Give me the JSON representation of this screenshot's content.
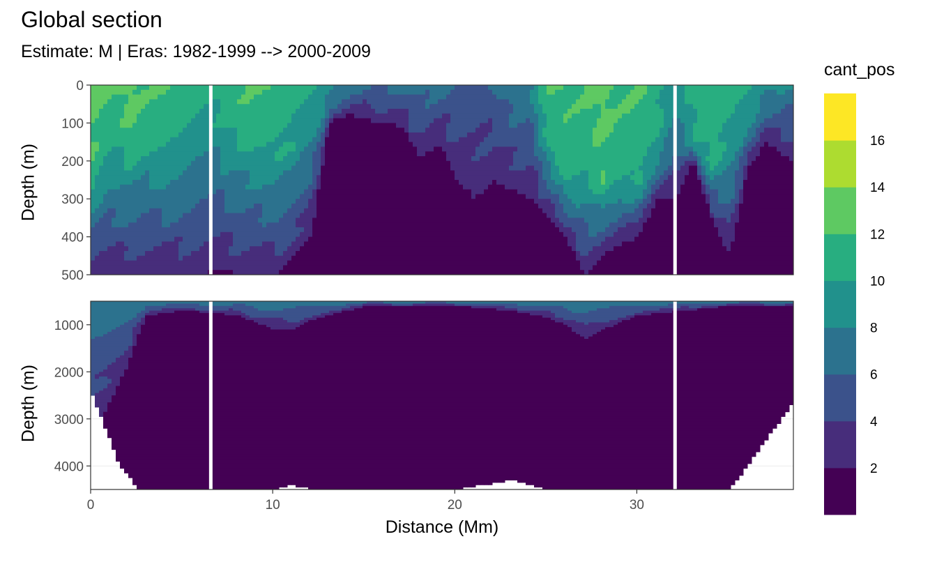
{
  "chart_data": {
    "type": "heatmap",
    "title": "Global section",
    "subtitle": "Estimate: M  | Eras: 1982-1999 --> 2000-2009",
    "xlabel": "Distance (Mm)",
    "ylabel": "Depth (m)",
    "legend_title": "cant_pos",
    "legend_placement": "right",
    "grid": true,
    "x_ticks": [
      0,
      10,
      20,
      30
    ],
    "xlim": [
      0,
      38.6
    ],
    "panels": [
      {
        "name": "upper",
        "ylim": [
          500,
          0
        ],
        "y_ticks": [
          0,
          100,
          200,
          300,
          400,
          500
        ]
      },
      {
        "name": "lower",
        "ylim": [
          4500,
          500
        ],
        "y_ticks": [
          1000,
          2000,
          3000,
          4000
        ]
      }
    ],
    "color_levels": [
      {
        "min": 0,
        "max": 2,
        "color": "#440154"
      },
      {
        "min": 2,
        "max": 4,
        "color": "#472d7b"
      },
      {
        "min": 4,
        "max": 6,
        "color": "#3b528b"
      },
      {
        "min": 6,
        "max": 8,
        "color": "#2c728e"
      },
      {
        "min": 8,
        "max": 10,
        "color": "#21918c"
      },
      {
        "min": 10,
        "max": 12,
        "color": "#28ae80"
      },
      {
        "min": 12,
        "max": 14,
        "color": "#5ec962"
      },
      {
        "min": 14,
        "max": 16,
        "color": "#addc30"
      },
      {
        "min": 16,
        "max": 18,
        "color": "#fde725"
      }
    ],
    "legend_ticks": [
      2,
      4,
      6,
      8,
      10,
      12,
      14,
      16
    ],
    "section_gaps_mm": [
      6.6,
      32.1
    ],
    "upper_profile": {
      "distance_mm": [
        0,
        1,
        2,
        3,
        4,
        5,
        6,
        7,
        8,
        9,
        10,
        11,
        12,
        13,
        14,
        15,
        16,
        17,
        18,
        19,
        20,
        21,
        22,
        23,
        24,
        25,
        26,
        27,
        28,
        29,
        30,
        31,
        32,
        33,
        34,
        35,
        36,
        37,
        38.4
      ],
      "min_depth_m": [
        500,
        500,
        500,
        500,
        500,
        500,
        500,
        480,
        500,
        500,
        500,
        450,
        400,
        100,
        80,
        90,
        100,
        110,
        200,
        150,
        250,
        300,
        250,
        280,
        300,
        350,
        400,
        500,
        450,
        420,
        400,
        300,
        300,
        200,
        350,
        450,
        220,
        150,
        200
      ],
      "green_depth_m": [
        230,
        140,
        150,
        140,
        150,
        110,
        90,
        120,
        130,
        140,
        160,
        170,
        120,
        50,
        20,
        0,
        0,
        0,
        30,
        0,
        0,
        0,
        20,
        50,
        60,
        150,
        250,
        220,
        260,
        240,
        250,
        180,
        100,
        160,
        200,
        150,
        100,
        50,
        30
      ],
      "surface_value": [
        13,
        12,
        13,
        12,
        12,
        12,
        11,
        11,
        12,
        12,
        12,
        11,
        10,
        9,
        8,
        8,
        8,
        8,
        8,
        8,
        7,
        7,
        7,
        8,
        8,
        12,
        12,
        12,
        13,
        12,
        12,
        11,
        9,
        11,
        12,
        11,
        10,
        9,
        8
      ]
    },
    "lower_profile": {
      "distance_mm": [
        0,
        0.5,
        1,
        1.5,
        2,
        2.5,
        3,
        5,
        8,
        10,
        11,
        12,
        15,
        18,
        20,
        23,
        25,
        26,
        27,
        28,
        30,
        35,
        38.4
      ],
      "min_depth_m": [
        3200,
        3000,
        2600,
        2200,
        1800,
        1200,
        800,
        700,
        800,
        1100,
        1100,
        900,
        600,
        600,
        600,
        700,
        850,
        1000,
        1300,
        1100,
        800,
        600,
        600
      ],
      "seafloor_depth_m": [
        2500,
        3000,
        3500,
        4000,
        4200,
        4500,
        4500,
        4500,
        4500,
        4500,
        4400,
        4500,
        4500,
        4500,
        4500,
        4300,
        4500,
        4500,
        4500,
        4500,
        4500,
        4500,
        2700
      ]
    }
  }
}
